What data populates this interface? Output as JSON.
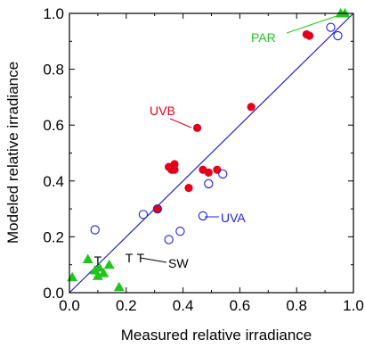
{
  "chart_data": {
    "type": "scatter",
    "title": "",
    "xlabel": "Measured relative irradiance",
    "ylabel": "Modeled relative irradiance",
    "xlim": [
      0,
      1
    ],
    "ylim": [
      0,
      1
    ],
    "xticks": [
      "0.0",
      "0.2",
      "0.4",
      "0.6",
      "0.8",
      "1.0"
    ],
    "yticks": [
      "0.0",
      "0.2",
      "0.4",
      "0.6",
      "0.8",
      "1.0"
    ],
    "grid": false,
    "reference_line": {
      "x": [
        0,
        1
      ],
      "y": [
        0,
        1
      ],
      "color": "#1f1fbf"
    },
    "series": [
      {
        "name": "UVB",
        "marker": "filled-circle",
        "color": "#e3001b",
        "points": [
          [
            0.31,
            0.3
          ],
          [
            0.35,
            0.45
          ],
          [
            0.36,
            0.44
          ],
          [
            0.37,
            0.44
          ],
          [
            0.37,
            0.46
          ],
          [
            0.42,
            0.375
          ],
          [
            0.45,
            0.59
          ],
          [
            0.47,
            0.44
          ],
          [
            0.49,
            0.43
          ],
          [
            0.52,
            0.44
          ],
          [
            0.64,
            0.665
          ],
          [
            0.835,
            0.925
          ],
          [
            0.845,
            0.92
          ]
        ]
      },
      {
        "name": "UVA",
        "marker": "open-circle",
        "color": "#1f1fdd",
        "points": [
          [
            0.09,
            0.225
          ],
          [
            0.26,
            0.28
          ],
          [
            0.31,
            0.3
          ],
          [
            0.35,
            0.19
          ],
          [
            0.39,
            0.22
          ],
          [
            0.47,
            0.275
          ],
          [
            0.49,
            0.39
          ],
          [
            0.54,
            0.425
          ],
          [
            0.92,
            0.95
          ],
          [
            0.945,
            0.92
          ]
        ]
      },
      {
        "name": "PAR",
        "marker": "filled-triangle",
        "color": "#22c41e",
        "points": [
          [
            0.01,
            0.055
          ],
          [
            0.065,
            0.12
          ],
          [
            0.09,
            0.08
          ],
          [
            0.1,
            0.06
          ],
          [
            0.105,
            0.09
          ],
          [
            0.12,
            0.07
          ],
          [
            0.14,
            0.1
          ],
          [
            0.175,
            0.02
          ],
          [
            0.955,
            1.0
          ],
          [
            0.97,
            1.0
          ]
        ]
      },
      {
        "name": "SW",
        "marker": "T",
        "color": "#000000",
        "points": [
          [
            0.1,
            0.115
          ],
          [
            0.21,
            0.125
          ],
          [
            0.25,
            0.125
          ]
        ]
      }
    ],
    "annotations": [
      {
        "text": "PAR",
        "color": "#22c41e"
      },
      {
        "text": "UVB",
        "color": "#e3001b"
      },
      {
        "text": "UVA",
        "color": "#1f1fdd"
      },
      {
        "text": "SW",
        "color": "#000000"
      }
    ]
  }
}
